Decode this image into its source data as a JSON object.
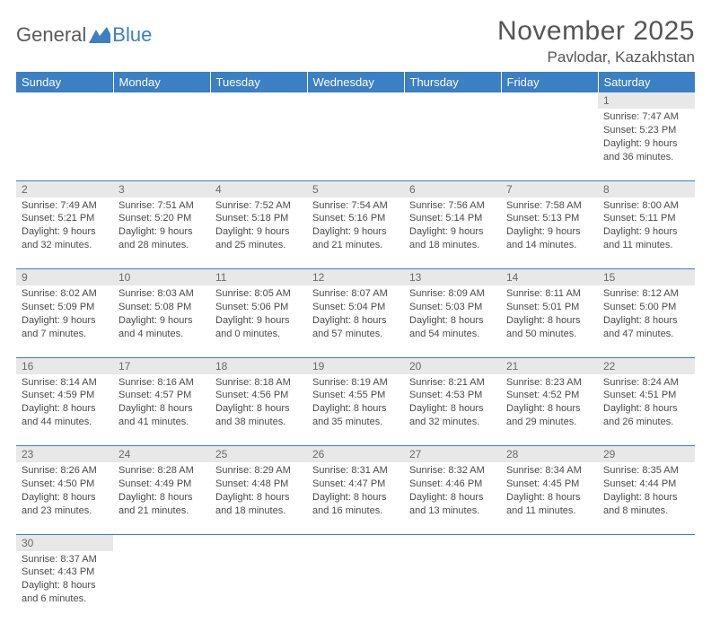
{
  "brand": {
    "general": "General",
    "blue": "Blue"
  },
  "title": {
    "month": "November 2025",
    "location": "Pavlodar, Kazakhstan"
  },
  "colors": {
    "header_bg": "#3b7fc4",
    "header_text": "#ffffff",
    "daynum_bg": "#e8e8e8",
    "daynum_text": "#6a6a6a",
    "cell_text": "#4a4a4a",
    "row_divider": "#3b7fc4",
    "page_bg": "#ffffff"
  },
  "typography": {
    "title_fontsize": 30,
    "location_fontsize": 17,
    "weekday_fontsize": 13,
    "daynum_fontsize": 12,
    "body_fontsize": 11
  },
  "weekdays": [
    "Sunday",
    "Monday",
    "Tuesday",
    "Wednesday",
    "Thursday",
    "Friday",
    "Saturday"
  ],
  "weeks": [
    [
      null,
      null,
      null,
      null,
      null,
      null,
      {
        "n": "1",
        "sunrise": "Sunrise: 7:47 AM",
        "sunset": "Sunset: 5:23 PM",
        "day1": "Daylight: 9 hours",
        "day2": "and 36 minutes."
      }
    ],
    [
      {
        "n": "2",
        "sunrise": "Sunrise: 7:49 AM",
        "sunset": "Sunset: 5:21 PM",
        "day1": "Daylight: 9 hours",
        "day2": "and 32 minutes."
      },
      {
        "n": "3",
        "sunrise": "Sunrise: 7:51 AM",
        "sunset": "Sunset: 5:20 PM",
        "day1": "Daylight: 9 hours",
        "day2": "and 28 minutes."
      },
      {
        "n": "4",
        "sunrise": "Sunrise: 7:52 AM",
        "sunset": "Sunset: 5:18 PM",
        "day1": "Daylight: 9 hours",
        "day2": "and 25 minutes."
      },
      {
        "n": "5",
        "sunrise": "Sunrise: 7:54 AM",
        "sunset": "Sunset: 5:16 PM",
        "day1": "Daylight: 9 hours",
        "day2": "and 21 minutes."
      },
      {
        "n": "6",
        "sunrise": "Sunrise: 7:56 AM",
        "sunset": "Sunset: 5:14 PM",
        "day1": "Daylight: 9 hours",
        "day2": "and 18 minutes."
      },
      {
        "n": "7",
        "sunrise": "Sunrise: 7:58 AM",
        "sunset": "Sunset: 5:13 PM",
        "day1": "Daylight: 9 hours",
        "day2": "and 14 minutes."
      },
      {
        "n": "8",
        "sunrise": "Sunrise: 8:00 AM",
        "sunset": "Sunset: 5:11 PM",
        "day1": "Daylight: 9 hours",
        "day2": "and 11 minutes."
      }
    ],
    [
      {
        "n": "9",
        "sunrise": "Sunrise: 8:02 AM",
        "sunset": "Sunset: 5:09 PM",
        "day1": "Daylight: 9 hours",
        "day2": "and 7 minutes."
      },
      {
        "n": "10",
        "sunrise": "Sunrise: 8:03 AM",
        "sunset": "Sunset: 5:08 PM",
        "day1": "Daylight: 9 hours",
        "day2": "and 4 minutes."
      },
      {
        "n": "11",
        "sunrise": "Sunrise: 8:05 AM",
        "sunset": "Sunset: 5:06 PM",
        "day1": "Daylight: 9 hours",
        "day2": "and 0 minutes."
      },
      {
        "n": "12",
        "sunrise": "Sunrise: 8:07 AM",
        "sunset": "Sunset: 5:04 PM",
        "day1": "Daylight: 8 hours",
        "day2": "and 57 minutes."
      },
      {
        "n": "13",
        "sunrise": "Sunrise: 8:09 AM",
        "sunset": "Sunset: 5:03 PM",
        "day1": "Daylight: 8 hours",
        "day2": "and 54 minutes."
      },
      {
        "n": "14",
        "sunrise": "Sunrise: 8:11 AM",
        "sunset": "Sunset: 5:01 PM",
        "day1": "Daylight: 8 hours",
        "day2": "and 50 minutes."
      },
      {
        "n": "15",
        "sunrise": "Sunrise: 8:12 AM",
        "sunset": "Sunset: 5:00 PM",
        "day1": "Daylight: 8 hours",
        "day2": "and 47 minutes."
      }
    ],
    [
      {
        "n": "16",
        "sunrise": "Sunrise: 8:14 AM",
        "sunset": "Sunset: 4:59 PM",
        "day1": "Daylight: 8 hours",
        "day2": "and 44 minutes."
      },
      {
        "n": "17",
        "sunrise": "Sunrise: 8:16 AM",
        "sunset": "Sunset: 4:57 PM",
        "day1": "Daylight: 8 hours",
        "day2": "and 41 minutes."
      },
      {
        "n": "18",
        "sunrise": "Sunrise: 8:18 AM",
        "sunset": "Sunset: 4:56 PM",
        "day1": "Daylight: 8 hours",
        "day2": "and 38 minutes."
      },
      {
        "n": "19",
        "sunrise": "Sunrise: 8:19 AM",
        "sunset": "Sunset: 4:55 PM",
        "day1": "Daylight: 8 hours",
        "day2": "and 35 minutes."
      },
      {
        "n": "20",
        "sunrise": "Sunrise: 8:21 AM",
        "sunset": "Sunset: 4:53 PM",
        "day1": "Daylight: 8 hours",
        "day2": "and 32 minutes."
      },
      {
        "n": "21",
        "sunrise": "Sunrise: 8:23 AM",
        "sunset": "Sunset: 4:52 PM",
        "day1": "Daylight: 8 hours",
        "day2": "and 29 minutes."
      },
      {
        "n": "22",
        "sunrise": "Sunrise: 8:24 AM",
        "sunset": "Sunset: 4:51 PM",
        "day1": "Daylight: 8 hours",
        "day2": "and 26 minutes."
      }
    ],
    [
      {
        "n": "23",
        "sunrise": "Sunrise: 8:26 AM",
        "sunset": "Sunset: 4:50 PM",
        "day1": "Daylight: 8 hours",
        "day2": "and 23 minutes."
      },
      {
        "n": "24",
        "sunrise": "Sunrise: 8:28 AM",
        "sunset": "Sunset: 4:49 PM",
        "day1": "Daylight: 8 hours",
        "day2": "and 21 minutes."
      },
      {
        "n": "25",
        "sunrise": "Sunrise: 8:29 AM",
        "sunset": "Sunset: 4:48 PM",
        "day1": "Daylight: 8 hours",
        "day2": "and 18 minutes."
      },
      {
        "n": "26",
        "sunrise": "Sunrise: 8:31 AM",
        "sunset": "Sunset: 4:47 PM",
        "day1": "Daylight: 8 hours",
        "day2": "and 16 minutes."
      },
      {
        "n": "27",
        "sunrise": "Sunrise: 8:32 AM",
        "sunset": "Sunset: 4:46 PM",
        "day1": "Daylight: 8 hours",
        "day2": "and 13 minutes."
      },
      {
        "n": "28",
        "sunrise": "Sunrise: 8:34 AM",
        "sunset": "Sunset: 4:45 PM",
        "day1": "Daylight: 8 hours",
        "day2": "and 11 minutes."
      },
      {
        "n": "29",
        "sunrise": "Sunrise: 8:35 AM",
        "sunset": "Sunset: 4:44 PM",
        "day1": "Daylight: 8 hours",
        "day2": "and 8 minutes."
      }
    ],
    [
      {
        "n": "30",
        "sunrise": "Sunrise: 8:37 AM",
        "sunset": "Sunset: 4:43 PM",
        "day1": "Daylight: 8 hours",
        "day2": "and 6 minutes."
      },
      null,
      null,
      null,
      null,
      null,
      null
    ]
  ]
}
